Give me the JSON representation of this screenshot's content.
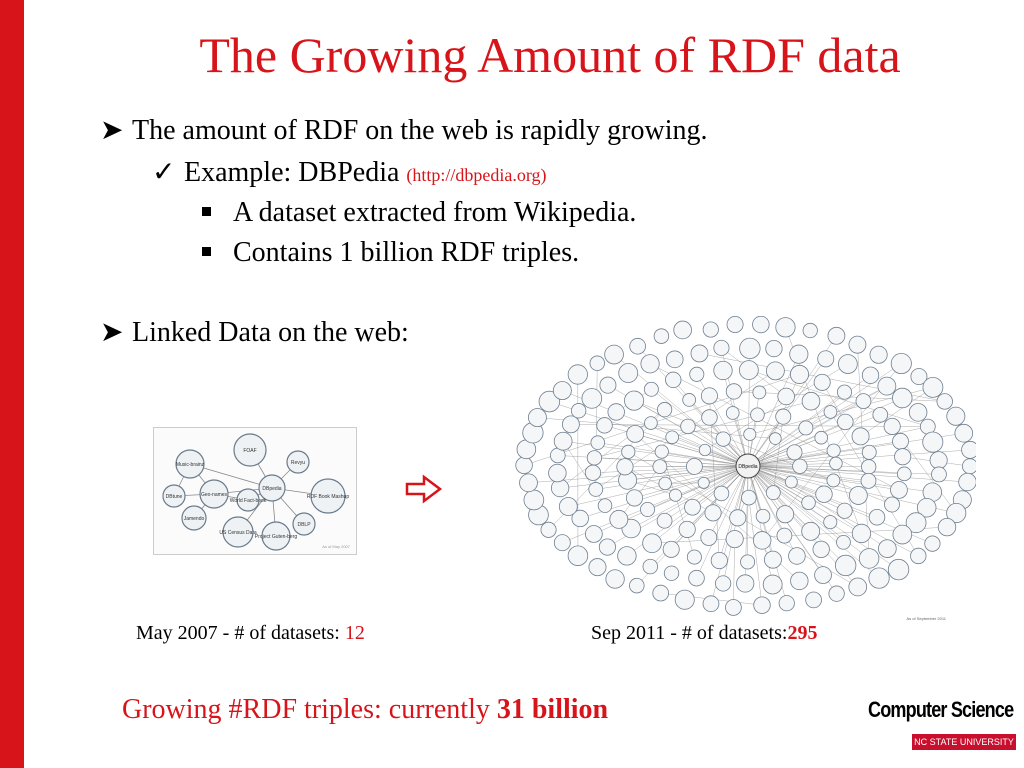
{
  "slide": {
    "title": "The Growing Amount of RDF data",
    "bullets": {
      "b1": "The amount of RDF on the web is rapidly growing.",
      "b1_1_text": "Example: DBPedia ",
      "b1_1_url": "(http://dbpedia.org)",
      "b1_1_1": "A dataset extracted from Wikipedia.",
      "b1_1_2": "Contains 1 billion RDF triples.",
      "b2": "Linked Data on the web:"
    },
    "captions": {
      "left_text": "May 2007 - # of datasets: ",
      "left_value": "12",
      "right_text": "Sep 2011 - # of datasets:",
      "right_value": "295"
    },
    "footer": {
      "text": "Growing #RDF triples: currently ",
      "value": "31 billion"
    },
    "logo": {
      "top": "Computer Science",
      "bottom": "NC STATE UNIVERSITY"
    },
    "small_graph": {
      "nodes": [
        "FOAF",
        "Music-brainz",
        "Revyu",
        "Geo-names",
        "World Fact-book",
        "DBpedia",
        "RDF Book Mashup",
        "DBtune",
        "Jamendo",
        "US Census Data",
        "Project Guten-berg",
        "DBLP"
      ],
      "note": "As of May 2007"
    },
    "big_graph": {
      "center_label": "DBpedia",
      "note": "As of September 2011"
    },
    "colors": {
      "accent": "#d7141a"
    }
  }
}
